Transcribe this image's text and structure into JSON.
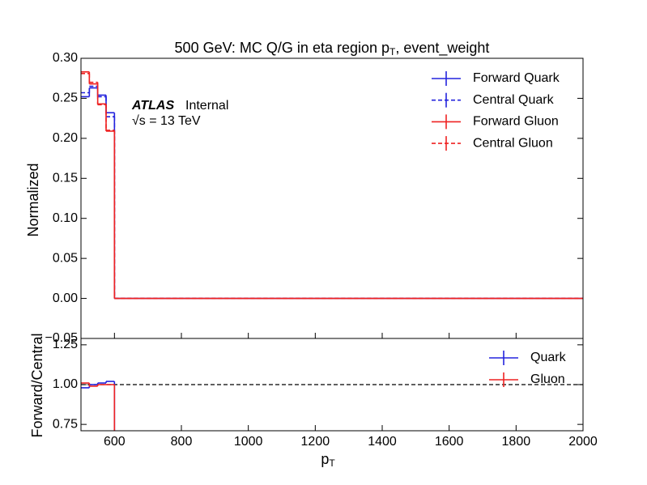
{
  "chart_data": [
    {
      "type": "step-histogram",
      "title": {
        "main": "500 GeV: MC Q/G in eta region p",
        "sub": "T",
        "rest": ", event_weight"
      },
      "ylabel": "Normalized",
      "annotation": {
        "experiment": "ATLAS",
        "status": "Internal",
        "energy": "√s = 13 TeV"
      },
      "bins": [
        500,
        525,
        550,
        575,
        600,
        2000
      ],
      "series": [
        {
          "name": "Forward Quark",
          "color": "#2323dd",
          "style": "solid",
          "values": [
            0.252,
            0.263,
            0.254,
            0.232,
            0
          ]
        },
        {
          "name": "Central Quark",
          "color": "#2323dd",
          "style": "dashed",
          "values": [
            0.257,
            0.265,
            0.252,
            0.227,
            0
          ]
        },
        {
          "name": "Forward Gluon",
          "color": "#ee2222",
          "style": "solid",
          "values": [
            0.283,
            0.268,
            0.243,
            0.209,
            0
          ]
        },
        {
          "name": "Central Gluon",
          "color": "#ee2222",
          "style": "dashed",
          "values": [
            0.281,
            0.27,
            0.242,
            0.21,
            0
          ]
        }
      ],
      "xlim": [
        500,
        2000
      ],
      "ylim": [
        -0.05,
        0.3
      ],
      "yticks": [
        {
          "value": 0.3,
          "label": "0.30"
        },
        {
          "value": 0.25,
          "label": "0.25"
        },
        {
          "value": 0.2,
          "label": "0.20"
        },
        {
          "value": 0.15,
          "label": "0.15"
        },
        {
          "value": 0.1,
          "label": "0.10"
        },
        {
          "value": 0.05,
          "label": "0.05"
        },
        {
          "value": 0.0,
          "label": "0.00"
        },
        {
          "value": -0.05,
          "label": "−0.05"
        }
      ],
      "legend": "upper right"
    },
    {
      "type": "step-histogram",
      "ylabel": "Forward/Central",
      "xlabel": {
        "main": "p",
        "sub": "T"
      },
      "bins": [
        500,
        525,
        550,
        575,
        600,
        2000
      ],
      "series": [
        {
          "name": "Quark",
          "color": "#2323dd",
          "style": "solid",
          "values": [
            0.98,
            1.0,
            1.01,
            1.02,
            null
          ]
        },
        {
          "name": "Gluon",
          "color": "#ee2222",
          "style": "solid",
          "values": [
            1.01,
            0.99,
            1.0,
            1.0,
            null
          ]
        }
      ],
      "reference_line": 1,
      "xlim": [
        500,
        2000
      ],
      "ylim": [
        0.71,
        1.29
      ],
      "xticks": [
        600,
        800,
        1000,
        1200,
        1400,
        1600,
        1800,
        2000
      ],
      "yticks": [
        {
          "value": 1.25,
          "label": "1.25"
        },
        {
          "value": 1.0,
          "label": "1.00"
        },
        {
          "value": 0.75,
          "label": "0.75"
        }
      ],
      "legend": "upper right"
    }
  ]
}
